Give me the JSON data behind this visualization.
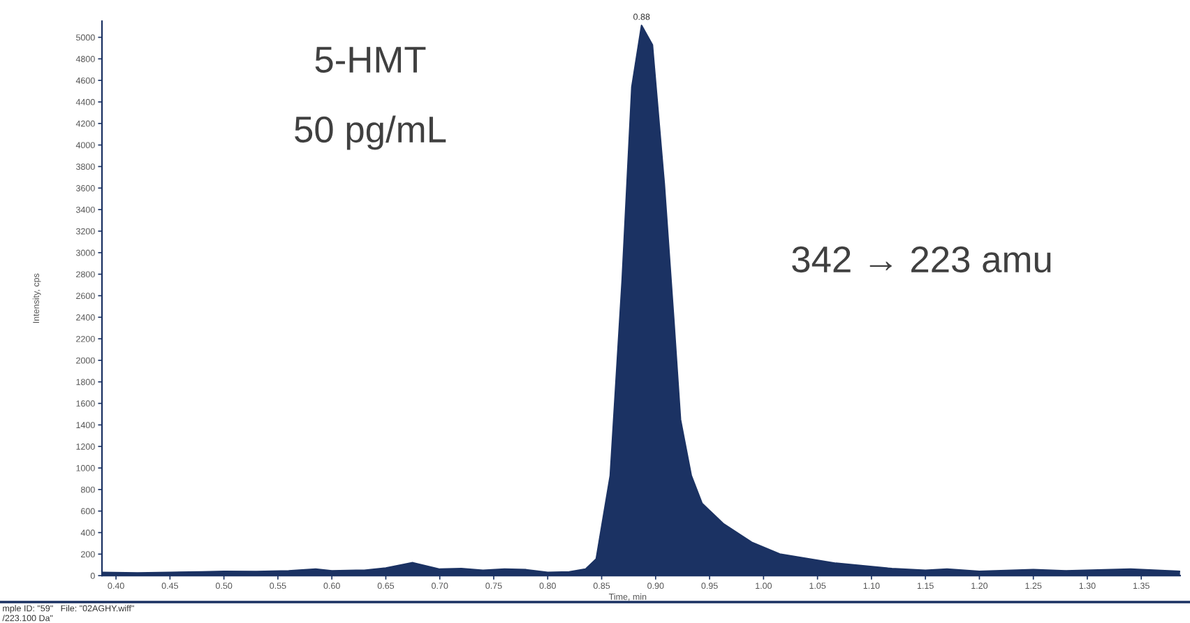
{
  "chart_data": {
    "type": "area",
    "xlabel": "Time, min",
    "ylabel": "Intensity, cps",
    "x": [
      0.387,
      0.42,
      0.45,
      0.48,
      0.5,
      0.53,
      0.56,
      0.585,
      0.6,
      0.63,
      0.65,
      0.675,
      0.7,
      0.72,
      0.74,
      0.76,
      0.78,
      0.8,
      0.82,
      0.835,
      0.845,
      0.858,
      0.869,
      0.878,
      0.887,
      0.897,
      0.908,
      0.917,
      0.923,
      0.933,
      0.943,
      0.963,
      0.989,
      1.015,
      1.067,
      1.119,
      1.15,
      1.17,
      1.2,
      1.25,
      1.28,
      1.34,
      1.386
    ],
    "series": [
      {
        "color": "#1b3263",
        "values": [
          30,
          25,
          30,
          35,
          40,
          38,
          45,
          60,
          45,
          50,
          70,
          120,
          60,
          65,
          50,
          60,
          55,
          30,
          35,
          60,
          155,
          930,
          2740,
          4540,
          5110,
          4930,
          3640,
          2350,
          1450,
          930,
          670,
          480,
          310,
          200,
          115,
          65,
          50,
          60,
          40,
          55,
          45,
          60,
          40
        ]
      }
    ],
    "xlim": [
      0.387,
      1.386
    ],
    "ylim": [
      0,
      5150
    ],
    "xticks": [
      {
        "value": 0.4,
        "label": "0.40"
      },
      {
        "value": 0.45,
        "label": "0.45"
      },
      {
        "value": 0.5,
        "label": "0.50"
      },
      {
        "value": 0.55,
        "label": "0.55"
      },
      {
        "value": 0.6,
        "label": "0.60"
      },
      {
        "value": 0.65,
        "label": "0.65"
      },
      {
        "value": 0.7,
        "label": "0.70"
      },
      {
        "value": 0.75,
        "label": "0.75"
      },
      {
        "value": 0.8,
        "label": "0.80"
      },
      {
        "value": 0.85,
        "label": "0.85"
      },
      {
        "value": 0.9,
        "label": "0.90"
      },
      {
        "value": 0.95,
        "label": "0.95"
      },
      {
        "value": 1.0,
        "label": "1.00"
      },
      {
        "value": 1.05,
        "label": "1.05"
      },
      {
        "value": 1.1,
        "label": "1.10"
      },
      {
        "value": 1.15,
        "label": "1.15"
      },
      {
        "value": 1.2,
        "label": "1.20"
      },
      {
        "value": 1.25,
        "label": "1.25"
      },
      {
        "value": 1.3,
        "label": "1.30"
      },
      {
        "value": 1.35,
        "label": "1.35"
      }
    ],
    "yticks": [
      0,
      200,
      400,
      600,
      800,
      1000,
      1200,
      1400,
      1600,
      1800,
      2000,
      2200,
      2400,
      2600,
      2800,
      3000,
      3200,
      3400,
      3600,
      3800,
      4000,
      4200,
      4400,
      4600,
      4800,
      5000
    ],
    "grid": false,
    "legend": false,
    "annotations": [
      "5-HMT",
      "50 pg/mL",
      "342 → 223 amu",
      {
        "text": "0.88",
        "x": 0.887,
        "y": 5110
      },
      "mple ID: \"59\"   File: \"02AGHY.wiff\"",
      "/223.100 Da\""
    ]
  }
}
